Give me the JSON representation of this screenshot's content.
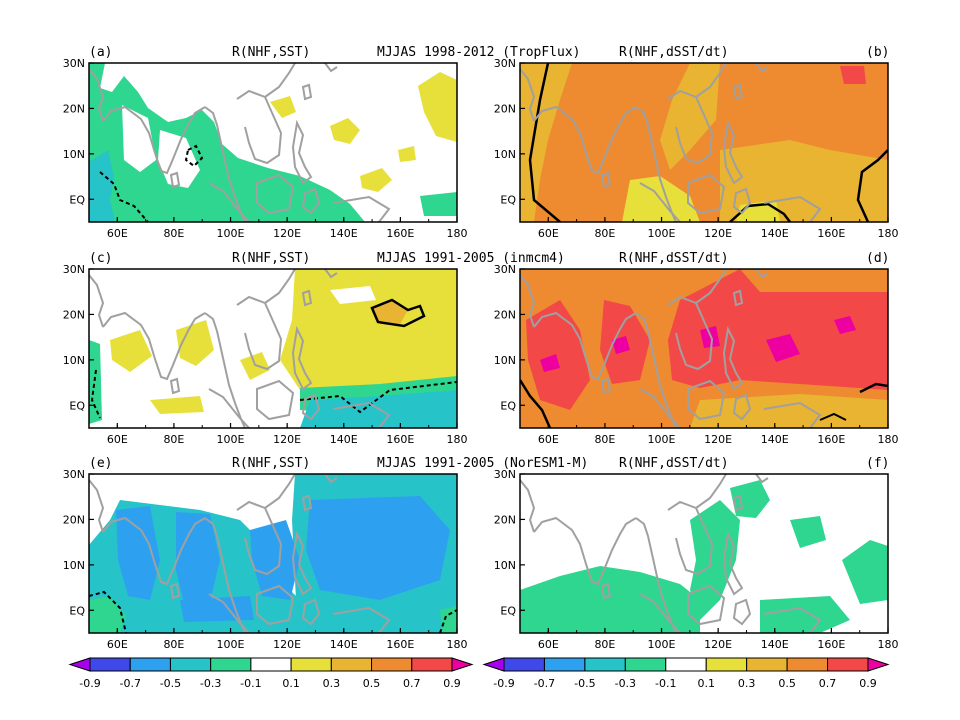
{
  "figure": {
    "rows": [
      {
        "label": "MJJAS 1998-2012 (TropFlux)"
      },
      {
        "label": "MJJAS 1991-2005 (inmcm4)"
      },
      {
        "label": "MJJAS 1991-2005 (NorESM1-M)"
      }
    ],
    "panels": [
      {
        "tag": "(a)",
        "title": "R(NHF,SST)",
        "fill": "sst_tropflux"
      },
      {
        "tag": "(b)",
        "title": "R(NHF,dSST/dt)",
        "fill": "tend_tropflux"
      },
      {
        "tag": "(c)",
        "title": "R(NHF,SST)",
        "fill": "sst_inmcm4"
      },
      {
        "tag": "(d)",
        "title": "R(NHF,dSST/dt)",
        "fill": "tend_inmcm4"
      },
      {
        "tag": "(e)",
        "title": "R(NHF,SST)",
        "fill": "sst_noresm"
      },
      {
        "tag": "(f)",
        "title": "R(NHF,dSST/dt)",
        "fill": "tend_noresm"
      }
    ],
    "axes": {
      "lon_ticks": [
        "60E",
        "80E",
        "100E",
        "120E",
        "140E",
        "160E",
        "180"
      ],
      "lat_ticks": [
        "30N",
        "20N",
        "10N",
        "EQ"
      ]
    },
    "colorbar": {
      "labels": [
        "-0.9",
        "-0.7",
        "-0.5",
        "-0.3",
        "-0.1",
        "0.1",
        "0.3",
        "0.5",
        "0.7",
        "0.9"
      ],
      "colors": [
        "#3f48e8",
        "#2ea0f0",
        "#26c4c8",
        "#2ed690",
        "#ffffff",
        "#e8e03a",
        "#e8b432",
        "#ee8a30",
        "#f24848"
      ],
      "under_color": "#a800ee",
      "over_color": "#ee00a0"
    },
    "coast_color": "#a0a0a0",
    "contour_color": "#000000"
  }
}
